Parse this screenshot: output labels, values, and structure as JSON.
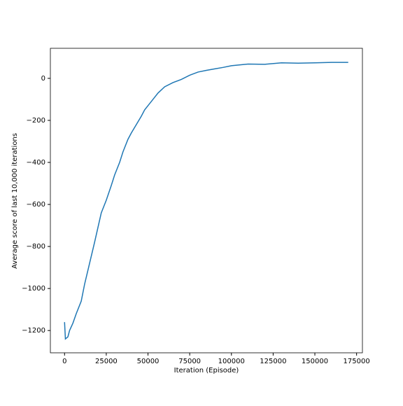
{
  "chart_data": {
    "type": "line",
    "xlabel": "Iteration (Episode)",
    "ylabel": "Average score of last 10,000 iterations",
    "x": [
      0,
      500,
      2000,
      3000,
      5000,
      7000,
      10000,
      12000,
      15000,
      18000,
      20000,
      22000,
      25000,
      28000,
      30000,
      33000,
      35000,
      38000,
      40000,
      43000,
      46000,
      48000,
      50000,
      53000,
      56000,
      60000,
      65000,
      70000,
      75000,
      80000,
      85000,
      90000,
      95000,
      100000,
      110000,
      120000,
      130000,
      140000,
      150000,
      160000,
      170000
    ],
    "series": [
      {
        "name": "score",
        "color": "#1f77b4",
        "values": [
          -1160,
          -1240,
          -1230,
          -1200,
          -1165,
          -1120,
          -1060,
          -980,
          -880,
          -780,
          -710,
          -640,
          -580,
          -510,
          -460,
          -400,
          -350,
          -290,
          -260,
          -220,
          -180,
          -150,
          -130,
          -100,
          -70,
          -40,
          -20,
          -5,
          15,
          30,
          38,
          45,
          52,
          60,
          68,
          67,
          74,
          72,
          74,
          76,
          76
        ]
      }
    ],
    "xlim": [
      -8500,
      178500
    ],
    "ylim": [
      -1306,
      143
    ],
    "xticks": [
      0,
      25000,
      50000,
      75000,
      100000,
      125000,
      150000,
      175000
    ],
    "yticks": [
      {
        "value": -1200,
        "label": "−1200"
      },
      {
        "value": -1000,
        "label": "−1000"
      },
      {
        "value": -800,
        "label": "−800"
      },
      {
        "value": -600,
        "label": "−600"
      },
      {
        "value": -400,
        "label": "−400"
      },
      {
        "value": -200,
        "label": "−200"
      },
      0
    ],
    "grid": false
  }
}
